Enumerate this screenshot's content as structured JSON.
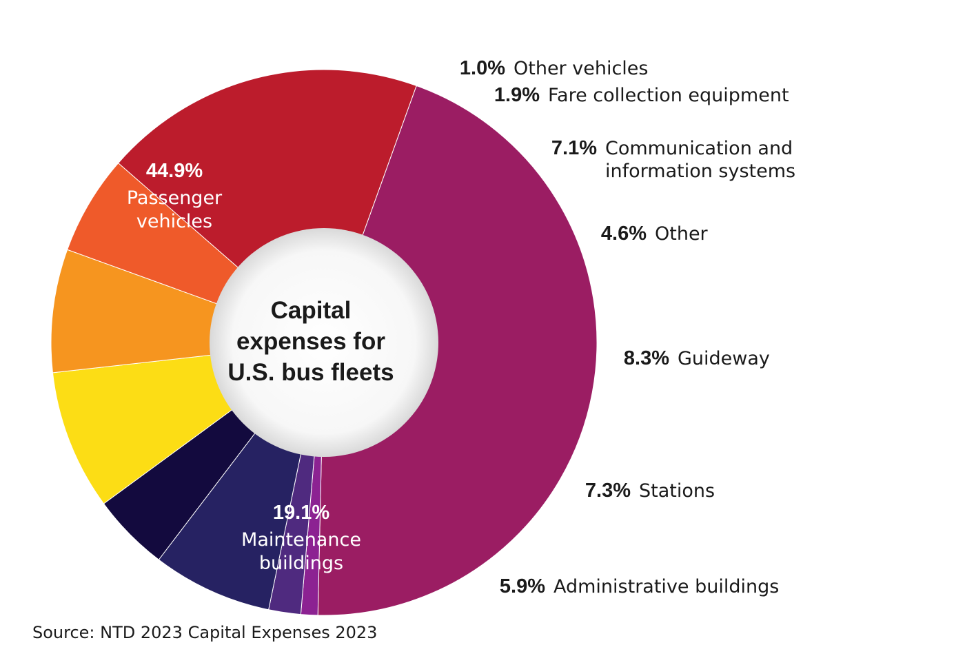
{
  "chart_data": {
    "type": "pie",
    "center_title": [
      "Capital",
      "expenses for",
      "U.S. bus fleets"
    ],
    "source": "Source: NTD 2023 Capital Expenses 2023",
    "slices": [
      {
        "pct_text": "44.9%",
        "label": [
          "Passenger",
          "vehicles"
        ],
        "value": 44.9,
        "color": "#9b1d63"
      },
      {
        "pct_text": "1.0%",
        "label": [
          "Other vehicles"
        ],
        "value": 1.0,
        "color": "#8c2292"
      },
      {
        "pct_text": "1.9%",
        "label": [
          "Fare collection equipment"
        ],
        "value": 1.9,
        "color": "#4f2a7f"
      },
      {
        "pct_text": "7.1%",
        "label": [
          "Communication and",
          "information systems"
        ],
        "value": 7.1,
        "color": "#262262"
      },
      {
        "pct_text": "4.6%",
        "label": [
          "Other"
        ],
        "value": 4.6,
        "color": "#130a3e"
      },
      {
        "pct_text": "8.3%",
        "label": [
          "Guideway"
        ],
        "value": 8.3,
        "color": "#fcdd15"
      },
      {
        "pct_text": "7.3%",
        "label": [
          "Stations"
        ],
        "value": 7.3,
        "color": "#f6951f"
      },
      {
        "pct_text": "5.9%",
        "label": [
          "Administrative buildings"
        ],
        "value": 5.9,
        "color": "#ef5a2a"
      },
      {
        "pct_text": "19.1%",
        "label": [
          "Maintenance",
          "buildings"
        ],
        "value": 19.1,
        "color": "#bc1c2c"
      }
    ]
  }
}
